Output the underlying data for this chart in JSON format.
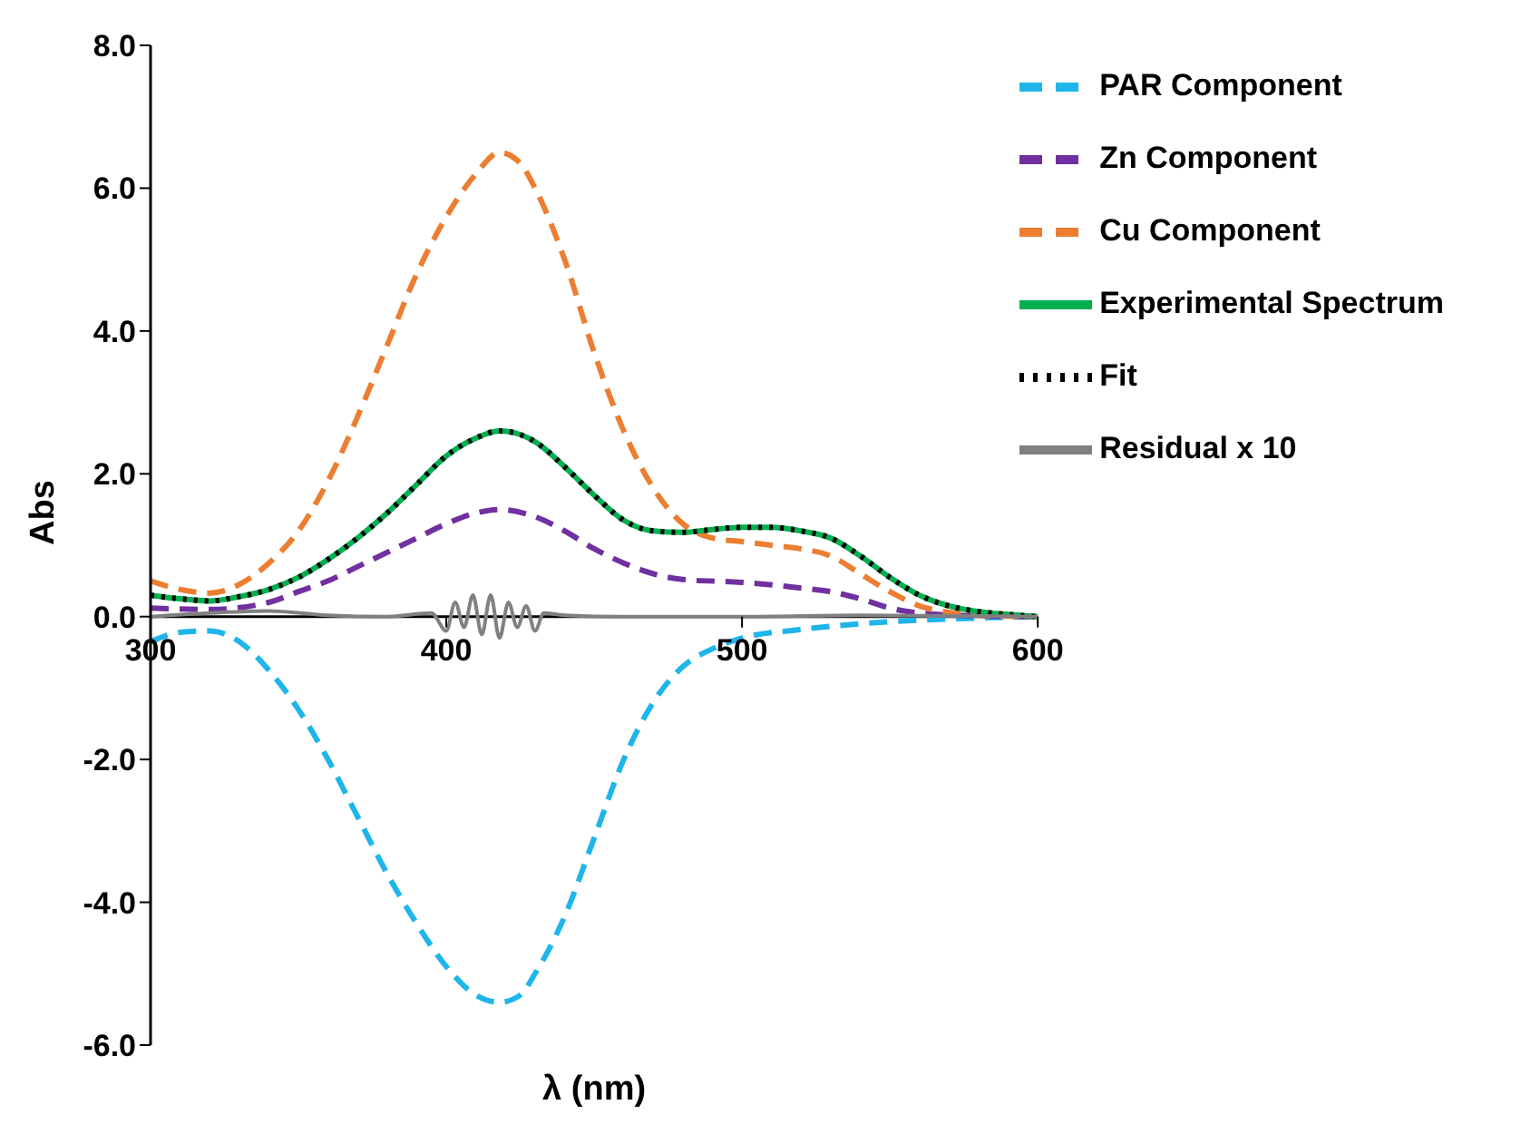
{
  "chart_data": {
    "type": "line",
    "xlabel": "λ (nm)",
    "ylabel": "Abs",
    "xlim": [
      300,
      600
    ],
    "xticks": [
      300,
      400,
      500,
      600
    ],
    "ylim": [
      -6,
      8
    ],
    "yticks": [
      {
        "value": -6,
        "label": "-6.0"
      },
      {
        "value": -4,
        "label": "-4.0"
      },
      {
        "value": -2,
        "label": "-2.0"
      },
      {
        "value": 0,
        "label": "0.0"
      },
      {
        "value": 2,
        "label": "2.0"
      },
      {
        "value": 4,
        "label": "4.0"
      },
      {
        "value": 6,
        "label": "6.0"
      },
      {
        "value": 8,
        "label": "8.0"
      }
    ],
    "grid": false,
    "legend": "top right",
    "marker": "none",
    "series": [
      {
        "name": "PAR Component",
        "color": "#1fb5ea",
        "line_style": "dashed",
        "x": [
          300,
          310,
          320,
          330,
          340,
          350,
          360,
          370,
          380,
          390,
          400,
          410,
          418,
          425,
          430,
          440,
          450,
          460,
          470,
          480,
          490,
          500,
          520,
          540,
          560,
          580,
          600
        ],
        "values": [
          -0.35,
          -0.22,
          -0.2,
          -0.35,
          -0.75,
          -1.3,
          -2.0,
          -2.8,
          -3.6,
          -4.3,
          -4.9,
          -5.3,
          -5.4,
          -5.3,
          -5.0,
          -4.2,
          -3.1,
          -2.0,
          -1.2,
          -0.7,
          -0.45,
          -0.3,
          -0.18,
          -0.1,
          -0.05,
          -0.02,
          0
        ]
      },
      {
        "name": "Zn Component",
        "color": "#7030a0",
        "line_style": "dashed",
        "x": [
          300,
          320,
          340,
          350,
          360,
          370,
          380,
          390,
          400,
          410,
          418,
          430,
          440,
          450,
          460,
          470,
          480,
          500,
          520,
          530,
          540,
          550,
          560,
          580,
          600
        ],
        "values": [
          0.12,
          0.1,
          0.2,
          0.35,
          0.5,
          0.7,
          0.9,
          1.1,
          1.3,
          1.45,
          1.5,
          1.4,
          1.2,
          0.95,
          0.75,
          0.6,
          0.52,
          0.48,
          0.4,
          0.35,
          0.25,
          0.12,
          0.05,
          0.01,
          0
        ]
      },
      {
        "name": "Cu Component",
        "color": "#ed7d31",
        "line_style": "dashed",
        "x": [
          300,
          310,
          320,
          330,
          340,
          350,
          360,
          370,
          380,
          390,
          400,
          410,
          418,
          425,
          430,
          440,
          450,
          460,
          470,
          480,
          490,
          500,
          510,
          520,
          530,
          540,
          550,
          560,
          570,
          580,
          600
        ],
        "values": [
          0.5,
          0.38,
          0.33,
          0.45,
          0.75,
          1.2,
          1.9,
          2.8,
          3.8,
          4.8,
          5.6,
          6.2,
          6.5,
          6.35,
          6.0,
          5.0,
          3.7,
          2.6,
          1.8,
          1.3,
          1.1,
          1.05,
          1.0,
          0.95,
          0.85,
          0.6,
          0.35,
          0.15,
          0.06,
          0.02,
          0
        ]
      },
      {
        "name": "Experimental Spectrum",
        "color": "#00b050",
        "line_style": "solid",
        "x": [
          300,
          310,
          320,
          330,
          340,
          350,
          360,
          370,
          380,
          390,
          400,
          410,
          418,
          425,
          430,
          440,
          450,
          460,
          470,
          480,
          490,
          500,
          510,
          520,
          530,
          540,
          550,
          560,
          570,
          580,
          590,
          600
        ],
        "values": [
          0.3,
          0.25,
          0.22,
          0.28,
          0.38,
          0.55,
          0.8,
          1.1,
          1.45,
          1.85,
          2.25,
          2.5,
          2.6,
          2.55,
          2.45,
          2.1,
          1.7,
          1.35,
          1.2,
          1.18,
          1.22,
          1.25,
          1.25,
          1.2,
          1.1,
          0.85,
          0.55,
          0.3,
          0.15,
          0.07,
          0.03,
          0
        ]
      },
      {
        "name": "Fit",
        "color": "#000000",
        "line_style": "dotted",
        "x": [
          300,
          310,
          320,
          330,
          340,
          350,
          360,
          370,
          380,
          390,
          400,
          410,
          418,
          425,
          430,
          440,
          450,
          460,
          470,
          480,
          490,
          500,
          510,
          520,
          530,
          540,
          550,
          560,
          570,
          580,
          590,
          600
        ],
        "values": [
          0.3,
          0.25,
          0.22,
          0.28,
          0.38,
          0.55,
          0.8,
          1.1,
          1.45,
          1.85,
          2.25,
          2.5,
          2.6,
          2.55,
          2.45,
          2.1,
          1.7,
          1.35,
          1.2,
          1.18,
          1.22,
          1.25,
          1.25,
          1.2,
          1.1,
          0.85,
          0.55,
          0.3,
          0.15,
          0.07,
          0.03,
          0
        ]
      },
      {
        "name": "Residual x 10",
        "color": "#808080",
        "line_style": "solid",
        "x": [
          300,
          320,
          340,
          360,
          380,
          395,
          400,
          403,
          406,
          409,
          412,
          415,
          418,
          421,
          424,
          427,
          430,
          433,
          440,
          460,
          500,
          540,
          600
        ],
        "values": [
          0.0,
          0.05,
          0.08,
          0.02,
          0.0,
          0.05,
          -0.2,
          0.2,
          -0.15,
          0.3,
          -0.25,
          0.3,
          -0.3,
          0.2,
          -0.15,
          0.15,
          -0.2,
          0.05,
          0.02,
          0.0,
          0.0,
          0.02,
          0
        ]
      }
    ]
  }
}
